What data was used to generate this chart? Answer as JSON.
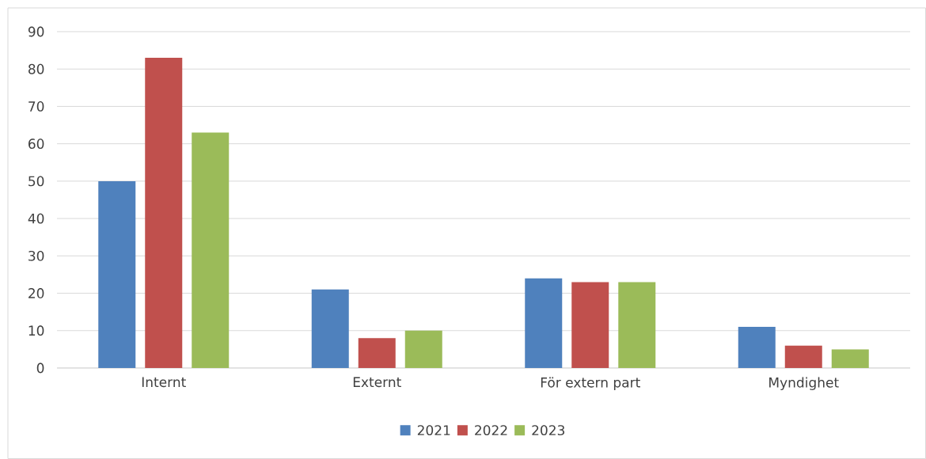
{
  "chart_data": {
    "type": "bar",
    "categories": [
      "Internt",
      "Externt",
      "För extern part",
      "Myndighet"
    ],
    "series": [
      {
        "name": "2021",
        "color": "#4f81bd",
        "values": [
          50,
          21,
          24,
          11
        ]
      },
      {
        "name": "2022",
        "color": "#c0504d",
        "values": [
          83,
          8,
          23,
          6
        ]
      },
      {
        "name": "2023",
        "color": "#9bbb59",
        "values": [
          63,
          10,
          23,
          5
        ]
      }
    ],
    "ylim": [
      0,
      90
    ],
    "yticks": [
      0,
      10,
      20,
      30,
      40,
      50,
      60,
      70,
      80,
      90
    ],
    "grid": "y",
    "legend": "bottom"
  }
}
